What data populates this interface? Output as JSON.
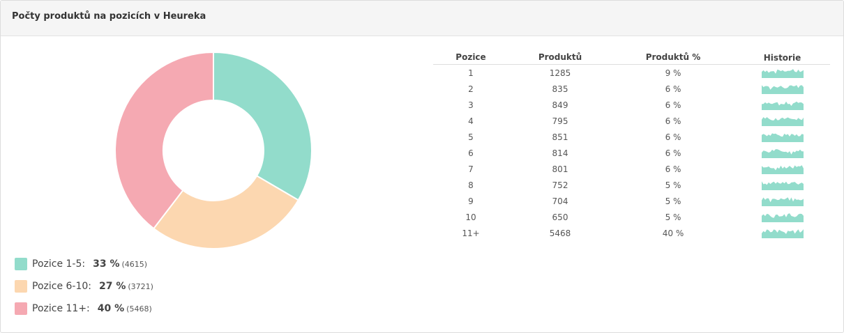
{
  "panel": {
    "title": "Počty produktů na pozicích v Heureka"
  },
  "table": {
    "headers": {
      "position": "Pozice",
      "products": "Produktů",
      "percent": "Produktů %",
      "history": "Historie"
    },
    "rows": [
      {
        "position": "1",
        "products": "1285",
        "percent": "9 %"
      },
      {
        "position": "2",
        "products": "835",
        "percent": "6 %"
      },
      {
        "position": "3",
        "products": "849",
        "percent": "6 %"
      },
      {
        "position": "4",
        "products": "795",
        "percent": "6 %"
      },
      {
        "position": "5",
        "products": "851",
        "percent": "6 %"
      },
      {
        "position": "6",
        "products": "814",
        "percent": "6 %"
      },
      {
        "position": "7",
        "products": "801",
        "percent": "6 %"
      },
      {
        "position": "8",
        "products": "752",
        "percent": "5 %"
      },
      {
        "position": "9",
        "products": "704",
        "percent": "5 %"
      },
      {
        "position": "10",
        "products": "650",
        "percent": "5 %"
      },
      {
        "position": "11+",
        "products": "5468",
        "percent": "40 %"
      }
    ]
  },
  "legend": [
    {
      "label": "Pozice 1-5:",
      "percent": "33 %",
      "count": "(4615)"
    },
    {
      "label": "Pozice 6-10:",
      "percent": "27 %",
      "count": "(3721)"
    },
    {
      "label": "Pozice 11+:",
      "percent": "40 %",
      "count": "(5468)"
    }
  ],
  "chart_data": {
    "type": "pie",
    "variant": "donut",
    "categories": [
      "Pozice 1-5",
      "Pozice 6-10",
      "Pozice 11+"
    ],
    "values": [
      4615,
      3721,
      5468
    ],
    "colors": [
      "#92dccb",
      "#fcd7b0",
      "#f5a9b2"
    ],
    "start_angle_deg": 0,
    "direction": "clockwise"
  },
  "sparkline_color": "#92dccb"
}
